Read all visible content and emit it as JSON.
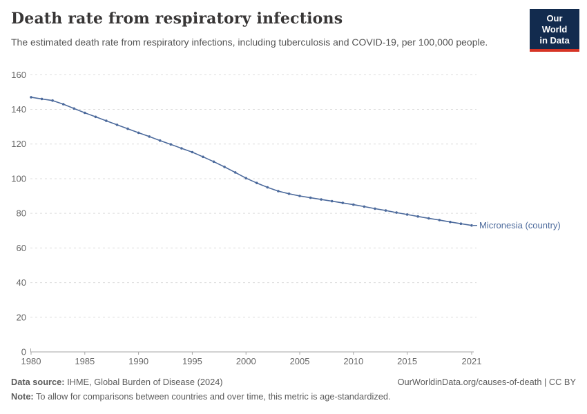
{
  "header": {
    "title": "Death rate from respiratory infections",
    "subtitle": "The estimated death rate from respiratory infections, including tuberculosis and COVID-19, per 100,000 people.",
    "logo": {
      "line1": "Our World",
      "line2": "in Data"
    }
  },
  "chart_data": {
    "type": "line",
    "title": "Death rate from respiratory infections",
    "entity_label": "Micronesia (country)",
    "x": [
      1980,
      1981,
      1982,
      1983,
      1984,
      1985,
      1986,
      1987,
      1988,
      1989,
      1990,
      1991,
      1992,
      1993,
      1994,
      1995,
      1996,
      1997,
      1998,
      1999,
      2000,
      2001,
      2002,
      2003,
      2004,
      2005,
      2006,
      2007,
      2008,
      2009,
      2010,
      2011,
      2012,
      2013,
      2014,
      2015,
      2016,
      2017,
      2018,
      2019,
      2020,
      2021
    ],
    "values": [
      147.0,
      146.0,
      145.1,
      143.0,
      140.5,
      138.0,
      135.7,
      133.4,
      131.1,
      128.8,
      126.5,
      124.3,
      122.0,
      119.8,
      117.5,
      115.3,
      112.6,
      109.8,
      106.8,
      103.6,
      100.3,
      97.5,
      95.0,
      92.8,
      91.3,
      90.0,
      89.0,
      88.0,
      87.0,
      86.0,
      85.0,
      83.9,
      82.7,
      81.6,
      80.4,
      79.3,
      78.2,
      77.1,
      76.1,
      75.0,
      74.0,
      73.0
    ],
    "x_ticks": [
      1980,
      1985,
      1990,
      1995,
      2000,
      2005,
      2010,
      2015,
      2021
    ],
    "y_ticks": [
      0,
      20,
      40,
      60,
      80,
      100,
      120,
      140,
      160
    ],
    "xlim": [
      1980,
      2021
    ],
    "ylim": [
      0,
      160
    ],
    "grid": true,
    "legend_position": "end-of-line-label"
  },
  "footer": {
    "data_source_label": "Data source:",
    "data_source": "IHME, Global Burden of Disease (2024)",
    "link": "OurWorldinData.org/causes-of-death | CC BY",
    "note_label": "Note:",
    "note": "To allow for comparisons between countries and over time, this metric is age-standardized."
  },
  "colors": {
    "line": "#4C6A9C",
    "entity_label": "#4C6A9C",
    "grid": "#dcdcdc",
    "axis": "#a3a3a3",
    "tick_text": "#666666",
    "title": "#383636",
    "subtitle": "#555555",
    "footer_text": "#5b5b5b",
    "logo_bg": "#122b4e",
    "logo_red": "#d63425"
  }
}
